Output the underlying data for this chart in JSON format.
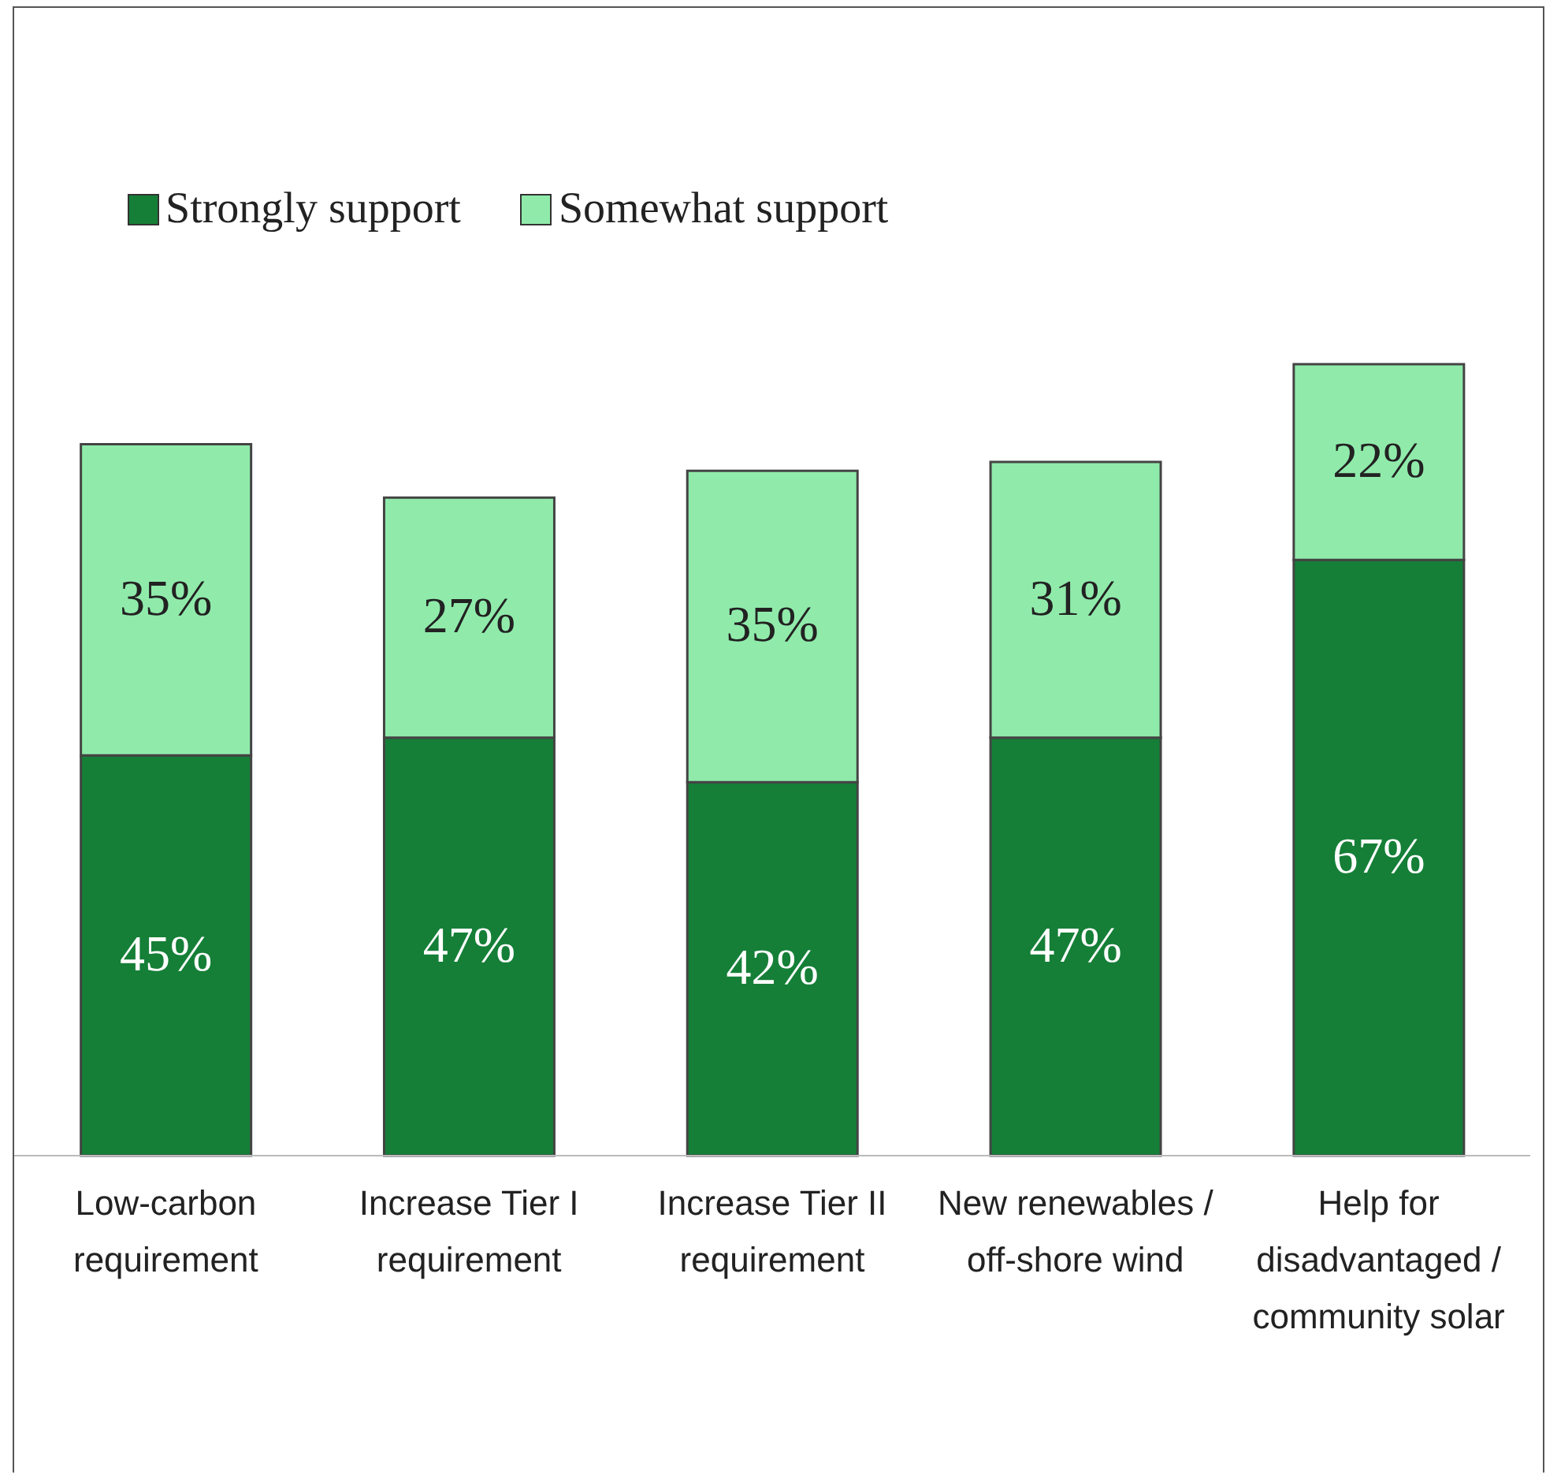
{
  "chart_data": {
    "type": "bar",
    "stacked": true,
    "legend": "top left",
    "categories": [
      "Low-carbon requirement",
      "Increase Tier I requirement",
      "Increase Tier II requirement",
      "New renewables / off-shore wind",
      "Help for disadvantaged / community solar"
    ],
    "series": [
      {
        "name": "Strongly support",
        "color": "#157f37",
        "values": [
          45,
          47,
          42,
          47,
          67
        ],
        "value_labels": [
          "45%",
          "47%",
          "42%",
          "47%",
          "67%"
        ]
      },
      {
        "name": "Somewhat support",
        "color": "#90ebab",
        "values": [
          35,
          27,
          35,
          31,
          22
        ],
        "value_labels": [
          "35%",
          "27%",
          "35%",
          "31%",
          "22%"
        ]
      }
    ]
  }
}
